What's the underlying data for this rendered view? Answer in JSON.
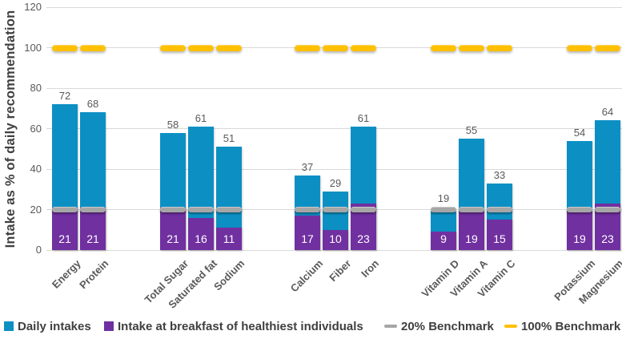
{
  "chart_data": {
    "type": "bar",
    "title": "",
    "xlabel": "",
    "ylabel": "Intake as % of daily recommendation",
    "ylim": [
      0,
      120
    ],
    "yticks": [
      0,
      20,
      40,
      60,
      80,
      100,
      120
    ],
    "grid": true,
    "legend_position": "bottom",
    "series_names": [
      "Daily intakes",
      "Intake at breakfast of healthiest individuals"
    ],
    "groups": [
      {
        "items": [
          {
            "category": "Energy",
            "daily_intake": 72,
            "breakfast_intake": 21
          },
          {
            "category": "Protein",
            "daily_intake": 68,
            "breakfast_intake": 21
          }
        ]
      },
      {
        "items": [
          {
            "category": "Total Sugar",
            "daily_intake": 58,
            "breakfast_intake": 21
          },
          {
            "category": "Saturated fat",
            "daily_intake": 61,
            "breakfast_intake": 16
          },
          {
            "category": "Sodium",
            "daily_intake": 51,
            "breakfast_intake": 11
          }
        ]
      },
      {
        "items": [
          {
            "category": "Calcium",
            "daily_intake": 37,
            "breakfast_intake": 17
          },
          {
            "category": "Fiber",
            "daily_intake": 29,
            "breakfast_intake": 10
          },
          {
            "category": "Iron",
            "daily_intake": 61,
            "breakfast_intake": 23
          }
        ]
      },
      {
        "items": [
          {
            "category": "Vitamin D",
            "daily_intake": 19,
            "breakfast_intake": 9
          },
          {
            "category": "Vitamin A",
            "daily_intake": 55,
            "breakfast_intake": 19
          },
          {
            "category": "Vitamin C",
            "daily_intake": 33,
            "breakfast_intake": 15
          }
        ]
      },
      {
        "items": [
          {
            "category": "Potassium",
            "daily_intake": 54,
            "breakfast_intake": 19
          },
          {
            "category": "Magnesium",
            "daily_intake": 64,
            "breakfast_intake": 23
          }
        ]
      }
    ],
    "benchmarks": [
      {
        "name": "20% Benchmark",
        "value": 20,
        "color": "#A6A6A6"
      },
      {
        "name": "100% Benchmark",
        "value": 100,
        "color": "#FFC000"
      }
    ],
    "colors": {
      "daily": "#0C90C4",
      "breakfast": "#7030A0",
      "benchmark20": "#A6A6A6",
      "benchmark100": "#FFC000",
      "gridline": "#D9D9D9",
      "axis_text": "#595959",
      "inside_label": "#FFFFFF"
    }
  },
  "legend": {
    "items": [
      {
        "label": "Daily intakes",
        "marker": "square",
        "color": "#0C90C4"
      },
      {
        "label": "Intake at breakfast of healthiest individuals",
        "marker": "square",
        "color": "#7030A0"
      },
      {
        "label": "20% Benchmark",
        "marker": "dash",
        "color": "#A6A6A6"
      },
      {
        "label": "100% Benchmark",
        "marker": "dash",
        "color": "#FFC000"
      }
    ]
  }
}
